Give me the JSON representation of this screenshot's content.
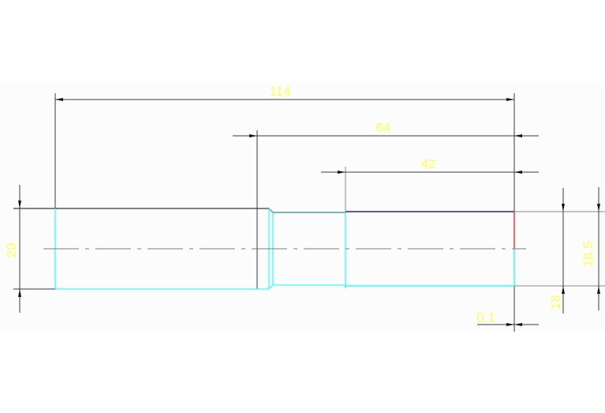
{
  "drawing": {
    "dimensions": {
      "overall_length": "114",
      "length_64": "64",
      "length_42": "42",
      "diameter_20": "20",
      "diameter_18": "18",
      "diameter_18_5": "18.5",
      "offset_0_1": "0.1"
    },
    "colors": {
      "dimension_text": "#ffff55",
      "dimension_line": "#3a3a3a",
      "outline_cyan": "#33ffff",
      "outline_purple": "#6a4fb0",
      "highlight_red": "#ff3333",
      "centerline": "#7a7a7a",
      "canvas": "#fbfcfb"
    }
  }
}
